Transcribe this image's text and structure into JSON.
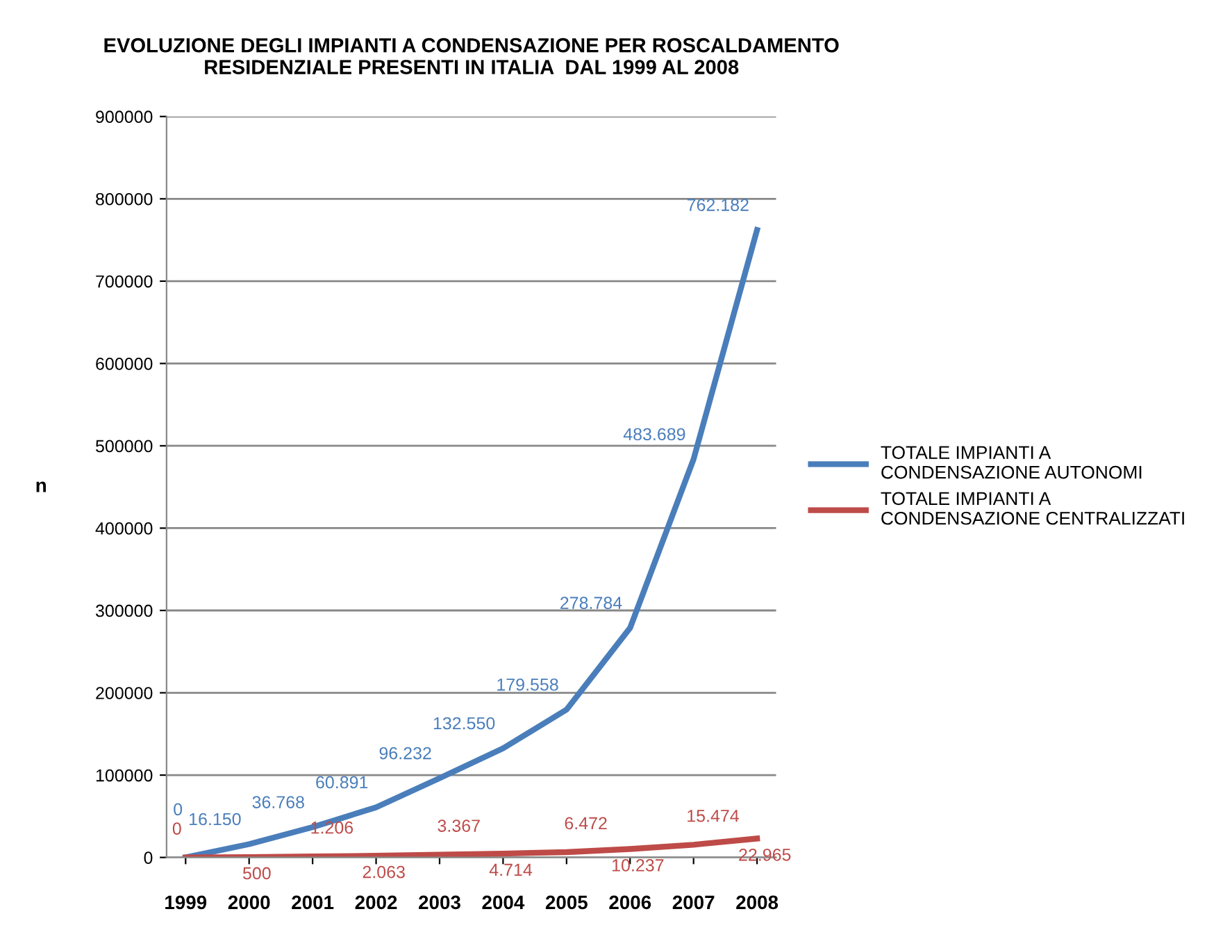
{
  "chart_data": {
    "type": "line",
    "title": "EVOLUZIONE DEGLI IMPIANTI A CONDENSAZIONE PER ROSCALDAMENTO\nRESIDENZIALE PRESENTI IN ITALIA  DAL 1999 AL 2008",
    "ylabel": "n",
    "categories": [
      "1999",
      "2000",
      "2001",
      "2002",
      "2003",
      "2004",
      "2005",
      "2006",
      "2007",
      "2008"
    ],
    "series": [
      {
        "name": "TOTALE IMPIANTI A\nCONDENSAZIONE AUTONOMI",
        "color": "#4a7ebb",
        "values": [
          0,
          16150,
          36768,
          60891,
          96232,
          132550,
          179558,
          278784,
          483689,
          762182
        ],
        "value_labels": [
          "0",
          "16.150",
          "36.768",
          "60.891",
          "96.232",
          "132.550",
          "179.558",
          "278.784",
          "483.689",
          "762.182"
        ]
      },
      {
        "name": "TOTALE IMPIANTI A\nCONDENSAZIONE CENTRALIZZATI",
        "color": "#be4b48",
        "values": [
          0,
          500,
          1206,
          2063,
          3367,
          4714,
          6472,
          10237,
          15474,
          22965
        ],
        "value_labels": [
          "0",
          "500",
          "1.206",
          "2.063",
          "3.367",
          "4.714",
          "6.472",
          "10.237",
          "15.474",
          "22.965"
        ]
      }
    ],
    "ylim": [
      0,
      900000
    ],
    "yticks": [
      0,
      100000,
      200000,
      300000,
      400000,
      500000,
      600000,
      700000,
      800000,
      900000
    ],
    "grid": "y",
    "legend": "right",
    "marker": "none",
    "line_style": "solid"
  }
}
